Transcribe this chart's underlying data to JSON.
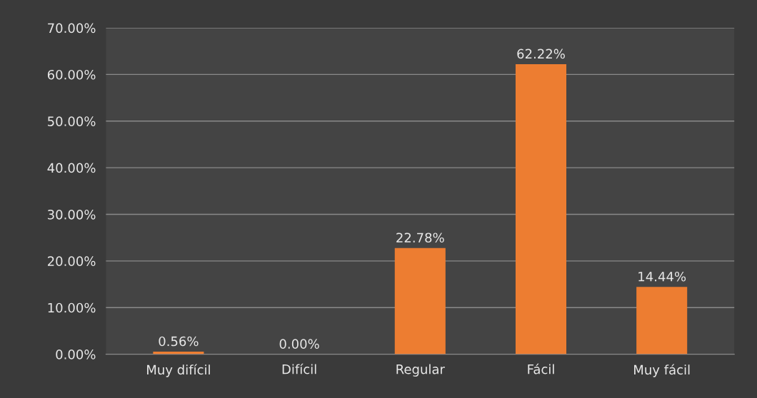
{
  "chart_data": {
    "type": "bar",
    "categories": [
      "Muy difícil",
      "Difícil",
      "Regular",
      "Fácil",
      "Muy fácil"
    ],
    "values": [
      0.56,
      0.0,
      22.78,
      62.22,
      14.44
    ],
    "color": "#ed7d31",
    "value_labels": [
      "0.56%",
      "0.00%",
      "22.78%",
      "62.22%",
      "14.44%"
    ],
    "ylim": [
      0,
      70
    ],
    "yticks": [
      {
        "value": 0,
        "label": "0.00%"
      },
      {
        "value": 10,
        "label": "10.00%"
      },
      {
        "value": 20,
        "label": "20.00%"
      },
      {
        "value": 30,
        "label": "30.00%"
      },
      {
        "value": 40,
        "label": "40.00%"
      },
      {
        "value": 50,
        "label": "50.00%"
      },
      {
        "value": 60,
        "label": "60.00%"
      },
      {
        "value": 70,
        "label": "70.00%"
      }
    ],
    "grid": "y",
    "legend": false
  }
}
